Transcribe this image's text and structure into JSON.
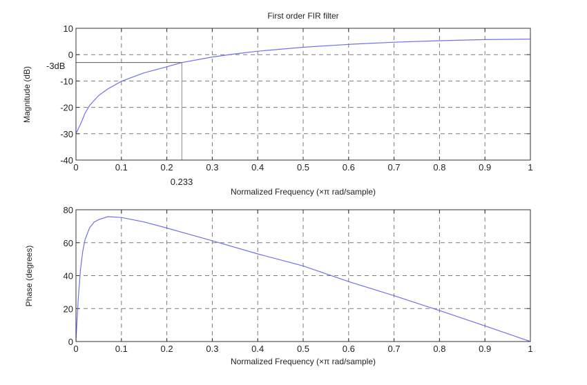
{
  "chart_data": [
    {
      "type": "line",
      "title": "First order FIR filter",
      "xlabel": "Normalized Frequency  (×π rad/sample)",
      "ylabel": "Magnitude (dB)",
      "xlim": [
        0,
        1
      ],
      "ylim": [
        -40,
        10
      ],
      "xticks": [
        "0",
        "0.1",
        "0.2",
        "0.3",
        "0.4",
        "0.5",
        "0.6",
        "0.7",
        "0.8",
        "0.9",
        "1"
      ],
      "yticks": [
        "10",
        "0",
        "-10",
        "-20",
        "-30",
        "-40"
      ],
      "grid": true,
      "annotations": [
        {
          "type": "hline",
          "y": -3,
          "x_to": 0.233,
          "label": "-3dB"
        },
        {
          "type": "vline",
          "x": 0.233,
          "y_from": -40,
          "y_to": -3,
          "label": "0.233"
        }
      ],
      "series": [
        {
          "name": "Magnitude",
          "color": "#6f6ff0",
          "x": [
            0,
            0.01,
            0.02,
            0.03,
            0.05,
            0.07,
            0.1,
            0.15,
            0.2,
            0.233,
            0.3,
            0.35,
            0.4,
            0.5,
            0.6,
            0.7,
            0.8,
            0.9,
            1.0
          ],
          "y": [
            -29.9,
            -26.4,
            -22.2,
            -19.3,
            -15.5,
            -13.0,
            -10.1,
            -6.9,
            -4.6,
            -3.0,
            -0.9,
            0.3,
            1.3,
            2.8,
            3.9,
            4.7,
            5.3,
            5.7,
            5.9
          ]
        }
      ]
    },
    {
      "type": "line",
      "title": "",
      "xlabel": "Normalized Frequency  (×π rad/sample)",
      "ylabel": "Phase (degrees)",
      "xlim": [
        0,
        1
      ],
      "ylim": [
        0,
        80
      ],
      "xticks": [
        "0",
        "0.1",
        "0.2",
        "0.3",
        "0.4",
        "0.5",
        "0.6",
        "0.7",
        "0.8",
        "0.9",
        "1"
      ],
      "yticks": [
        "80",
        "60",
        "40",
        "20",
        "0"
      ],
      "grid": true,
      "series": [
        {
          "name": "Phase",
          "color": "#6f6ff0",
          "x": [
            0,
            0.002,
            0.005,
            0.01,
            0.015,
            0.02,
            0.03,
            0.04,
            0.05,
            0.07,
            0.1,
            0.15,
            0.2,
            0.3,
            0.4,
            0.5,
            0.6,
            0.7,
            0.8,
            0.9,
            1.0
          ],
          "y": [
            0,
            11,
            26,
            44,
            55,
            62,
            69,
            72.5,
            74,
            75.8,
            75.3,
            72.6,
            68.9,
            61.2,
            53.2,
            45.9,
            36.4,
            27.8,
            18.8,
            9.5,
            0
          ]
        }
      ]
    }
  ],
  "plots": {
    "top": {
      "title": "First order FIR filter",
      "xlabel": "Normalized Frequency  (×π rad/sample)",
      "ylabel": "Magnitude (dB)",
      "marker_y_label": "-3dB",
      "marker_x_label": "0.233"
    },
    "bottom": {
      "xlabel": "Normalized Frequency  (×π rad/sample)",
      "ylabel": "Phase (degrees)"
    }
  }
}
